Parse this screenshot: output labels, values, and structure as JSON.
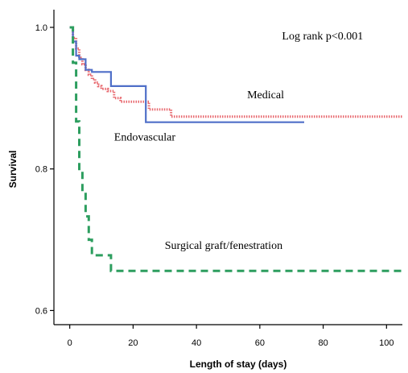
{
  "chart_data": {
    "type": "line",
    "title": "",
    "xlabel": "Length of stay (days)",
    "ylabel": "Survival",
    "xlim": [
      -5,
      105
    ],
    "ylim": [
      0.58,
      1.025
    ],
    "x_ticks": [
      0,
      20,
      40,
      60,
      80,
      100
    ],
    "y_ticks": [
      0.6,
      0.8,
      1.0
    ],
    "x_tick_labels": [
      "0",
      "20",
      "40",
      "60",
      "80",
      "100"
    ],
    "y_tick_labels": [
      "0.6",
      "0.8",
      "1.0"
    ],
    "grid": false,
    "legend": "none",
    "annotations": [
      {
        "text": "Log rank p<0.001",
        "x": 67,
        "y": 0.983
      },
      {
        "text": "Medical",
        "x": 56,
        "y": 0.9
      },
      {
        "text": "Endovascular",
        "x": 14,
        "y": 0.84
      },
      {
        "text": "Surgical graft/fenestration",
        "x": 30,
        "y": 0.687
      }
    ],
    "series": [
      {
        "name": "Medical",
        "color": "#e8696f",
        "style": "dotted",
        "x": [
          0,
          1,
          2,
          3,
          4,
          5,
          6,
          7,
          8,
          9,
          10,
          12,
          14,
          16,
          20,
          24,
          25,
          32,
          40,
          60,
          80,
          100,
          105
        ],
        "y": [
          1.0,
          0.985,
          0.97,
          0.957,
          0.948,
          0.94,
          0.933,
          0.927,
          0.922,
          0.917,
          0.913,
          0.91,
          0.9,
          0.895,
          0.895,
          0.895,
          0.884,
          0.874,
          0.874,
          0.874,
          0.874,
          0.874,
          0.874
        ]
      },
      {
        "name": "Endovascular",
        "color": "#4f6fc8",
        "style": "solid",
        "x": [
          0,
          1,
          2,
          3,
          5,
          6,
          7,
          13,
          24,
          32,
          74
        ],
        "y": [
          1.0,
          0.98,
          0.96,
          0.955,
          0.94,
          0.94,
          0.937,
          0.917,
          0.866,
          0.866,
          0.866
        ]
      },
      {
        "name": "Surgical graft/fenestration",
        "color": "#2d9e5f",
        "style": "dashed",
        "x": [
          0,
          1,
          2,
          3,
          4,
          5,
          6,
          7,
          13,
          20,
          40,
          60,
          80,
          105
        ],
        "y": [
          1.0,
          0.95,
          0.867,
          0.8,
          0.767,
          0.733,
          0.7,
          0.678,
          0.656,
          0.656,
          0.656,
          0.656,
          0.656,
          0.656
        ]
      }
    ]
  }
}
